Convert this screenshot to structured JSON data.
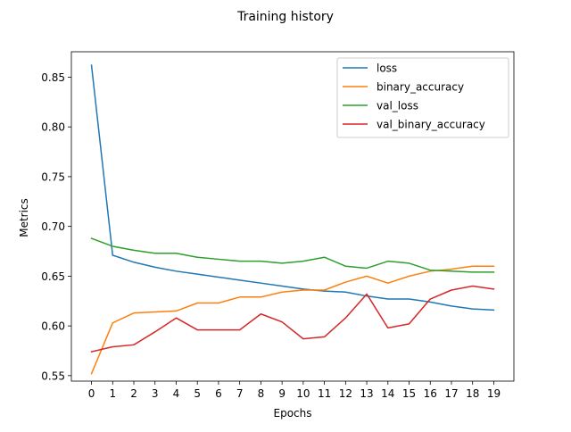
{
  "chart_data": {
    "type": "line",
    "title": "Training history",
    "xlabel": "Epochs",
    "ylabel": "Metrics",
    "xlim": [
      -0.95,
      19.95
    ],
    "ylim": [
      0.5445,
      0.8755
    ],
    "x": [
      0,
      1,
      2,
      3,
      4,
      5,
      6,
      7,
      8,
      9,
      10,
      11,
      12,
      13,
      14,
      15,
      16,
      17,
      18,
      19
    ],
    "x_ticks": [
      0,
      1,
      2,
      3,
      4,
      5,
      6,
      7,
      8,
      9,
      10,
      11,
      12,
      13,
      14,
      15,
      16,
      17,
      18,
      19
    ],
    "y_ticks": [
      0.55,
      0.6,
      0.65,
      0.7,
      0.75,
      0.8,
      0.85
    ],
    "y_tick_labels": [
      "0.55",
      "0.60",
      "0.65",
      "0.70",
      "0.75",
      "0.80",
      "0.85"
    ],
    "grid": false,
    "legend_position": "top-right",
    "series": [
      {
        "name": "loss",
        "color": "#1f77b4",
        "values": [
          0.862,
          0.671,
          0.664,
          0.659,
          0.655,
          0.652,
          0.649,
          0.646,
          0.643,
          0.64,
          0.637,
          0.635,
          0.634,
          0.63,
          0.627,
          0.627,
          0.624,
          0.62,
          0.617,
          0.616
        ]
      },
      {
        "name": "binary_accuracy",
        "color": "#ff7f0e",
        "values": [
          0.552,
          0.603,
          0.613,
          0.614,
          0.615,
          0.623,
          0.623,
          0.629,
          0.629,
          0.634,
          0.636,
          0.636,
          0.644,
          0.65,
          0.643,
          0.65,
          0.655,
          0.657,
          0.66,
          0.66
        ]
      },
      {
        "name": "val_loss",
        "color": "#2ca02c",
        "values": [
          0.688,
          0.68,
          0.676,
          0.673,
          0.673,
          0.669,
          0.667,
          0.665,
          0.665,
          0.663,
          0.665,
          0.669,
          0.66,
          0.658,
          0.665,
          0.663,
          0.656,
          0.655,
          0.654,
          0.654
        ]
      },
      {
        "name": "val_binary_accuracy",
        "color": "#d62728",
        "values": [
          0.574,
          0.579,
          0.581,
          0.594,
          0.608,
          0.596,
          0.596,
          0.596,
          0.612,
          0.604,
          0.587,
          0.589,
          0.608,
          0.632,
          0.598,
          0.602,
          0.627,
          0.636,
          0.64,
          0.637
        ]
      }
    ]
  }
}
